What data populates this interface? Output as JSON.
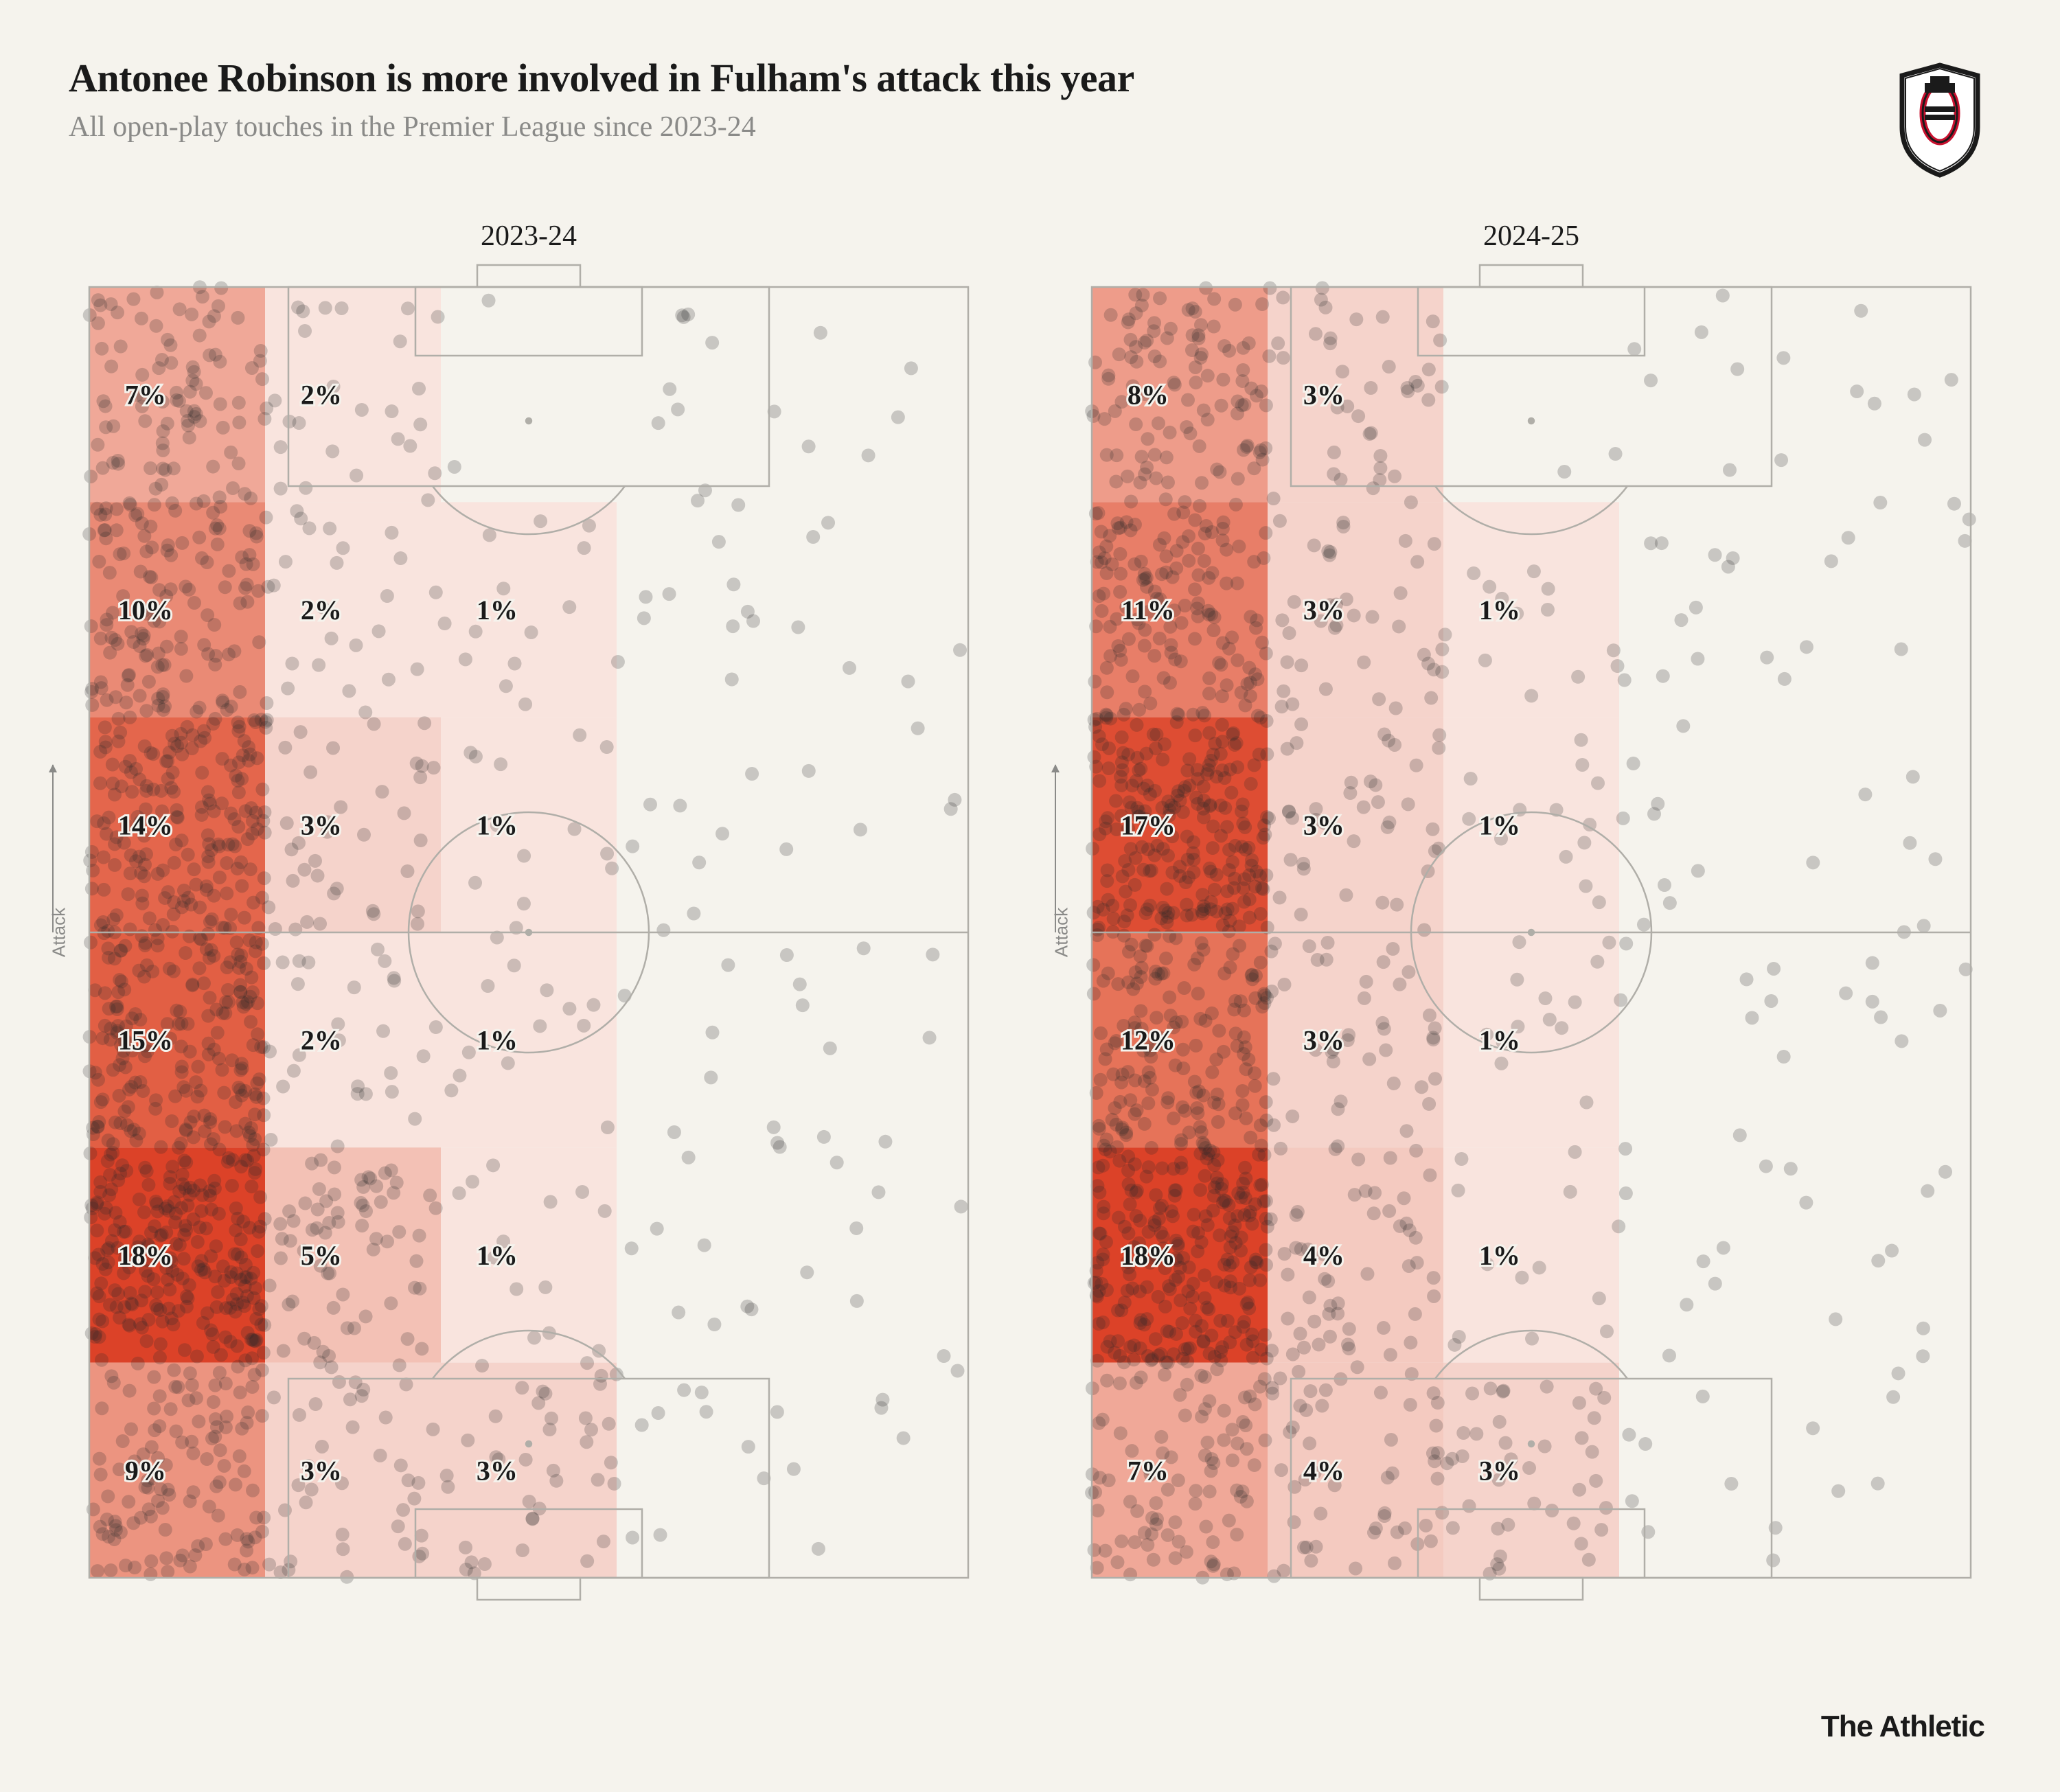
{
  "title": "Antonee Robinson is more involved in Fulham's attack this year",
  "subtitle": "All open-play touches in the Premier League since 2023-24",
  "credit": "The Athletic",
  "attack_label": "Attack",
  "background_color": "#f5f3ed",
  "pitch_line_color": "#b0aea8",
  "pitch_line_width": 2.5,
  "zone_label_fontsize": 40,
  "zone_label_color": "#1a1a1a",
  "zone_label_stroke": "#f5f3ed",
  "dot_color": "#2a2a2a",
  "dot_opacity": 0.22,
  "dot_radius": 10,
  "heat_colors": {
    "0": "#f5f3ed",
    "1": "#f9e4de",
    "2": "#f9e4de",
    "3": "#f5d3cb",
    "4": "#f4cac0",
    "5": "#f3c1b5",
    "7": "#f0a898",
    "8": "#ee9c8a",
    "9": "#ec9480",
    "10": "#ea8a75",
    "11": "#e87e68",
    "12": "#e67359",
    "14": "#e4664c",
    "15": "#e25f44",
    "17": "#de4d33",
    "18": "#dc4228"
  },
  "pitches": [
    {
      "label": "2023-24",
      "grid": [
        [
          7,
          2,
          0,
          0,
          0
        ],
        [
          10,
          2,
          1,
          0,
          0
        ],
        [
          14,
          3,
          1,
          0,
          0
        ],
        [
          15,
          2,
          1,
          0,
          0
        ],
        [
          18,
          5,
          1,
          0,
          0
        ],
        [
          9,
          3,
          3,
          0,
          0
        ]
      ],
      "dot_seed": 11
    },
    {
      "label": "2024-25",
      "grid": [
        [
          8,
          3,
          0,
          0,
          0
        ],
        [
          11,
          3,
          1,
          0,
          0
        ],
        [
          17,
          3,
          1,
          0,
          0
        ],
        [
          12,
          3,
          1,
          0,
          0
        ],
        [
          18,
          4,
          1,
          0,
          0
        ],
        [
          7,
          4,
          3,
          0,
          0
        ]
      ],
      "dot_seed": 29
    }
  ]
}
